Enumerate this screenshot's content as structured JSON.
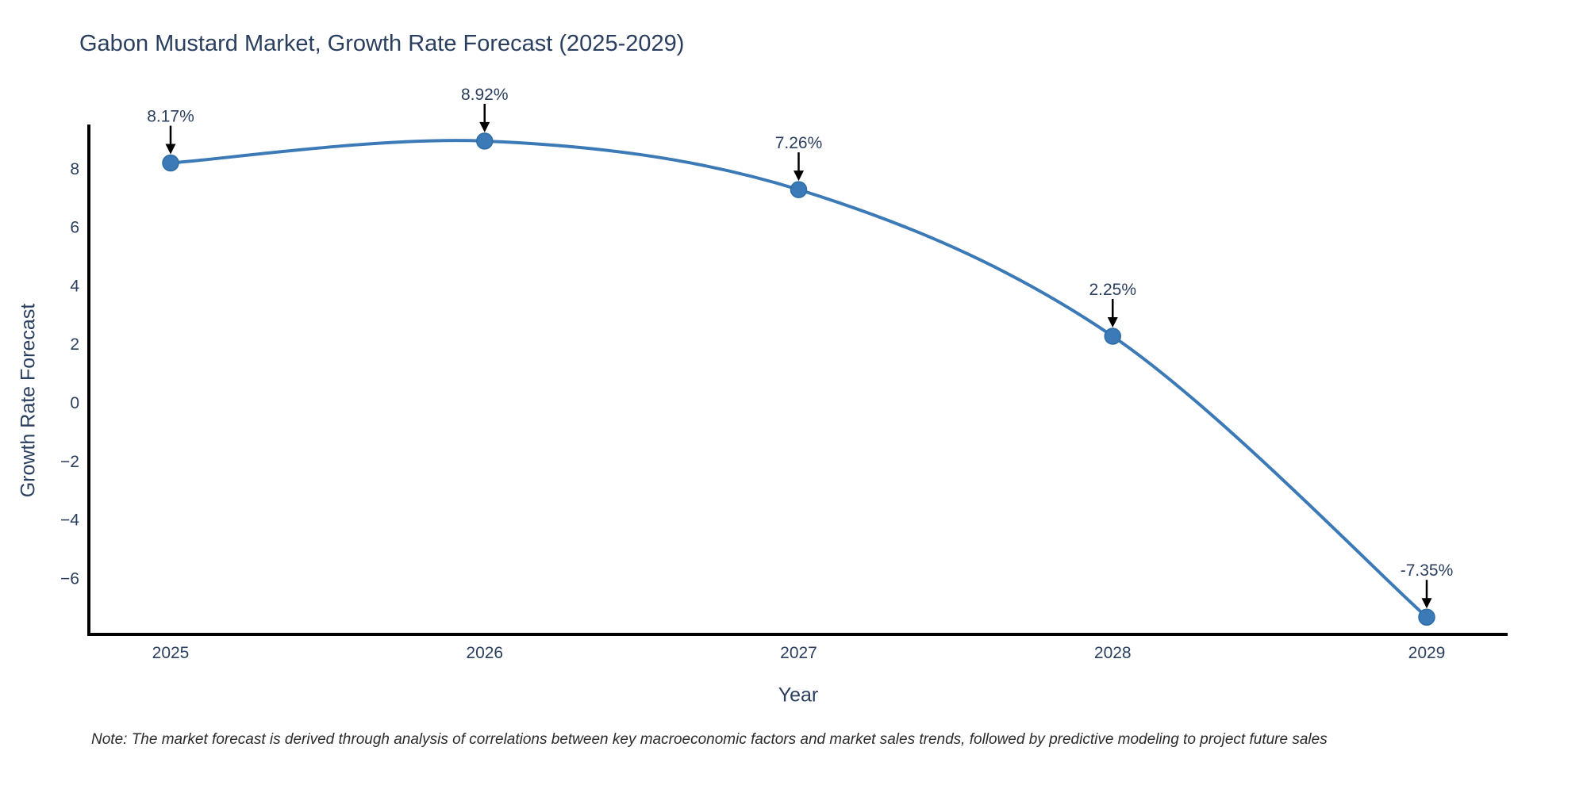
{
  "page": {
    "background": "#ffffff"
  },
  "chart_data": {
    "type": "line",
    "title": "Gabon Mustard Market, Growth Rate Forecast (2025-2029)",
    "xlabel": "Year",
    "ylabel": "Growth Rate Forecast",
    "categories": [
      "2025",
      "2026",
      "2027",
      "2028",
      "2029"
    ],
    "series": [
      {
        "name": "Growth Rate Forecast",
        "values": [
          8.17,
          8.92,
          7.26,
          2.25,
          -7.35
        ]
      }
    ],
    "point_labels": [
      "8.17%",
      "8.92%",
      "7.26%",
      "2.25%",
      "-7.35%"
    ],
    "y_tick_values": [
      8,
      6,
      4,
      2,
      0,
      -2,
      -4,
      -6
    ],
    "y_tick_labels": [
      "8",
      "6",
      "4",
      "2",
      "0",
      "−2",
      "−4",
      "−6"
    ],
    "ylim": [
      -7.9,
      9.5
    ],
    "grid": false,
    "legend": "none",
    "line_shape": "spline",
    "colors": {
      "line": "#3b7ab7",
      "marker": "#3b7ab7",
      "marker_edge": "#2e6da4",
      "axis": "#000000",
      "text": "#2a3f5f",
      "annotation_text": "#2a3f5f",
      "annotation_arrow": "#000000",
      "note_text": "#2b2b2b"
    }
  },
  "note": {
    "text": "Note: The market forecast is derived through analysis of correlations between key macroeconomic factors and market sales trends, followed by predictive modeling to project future sales"
  }
}
